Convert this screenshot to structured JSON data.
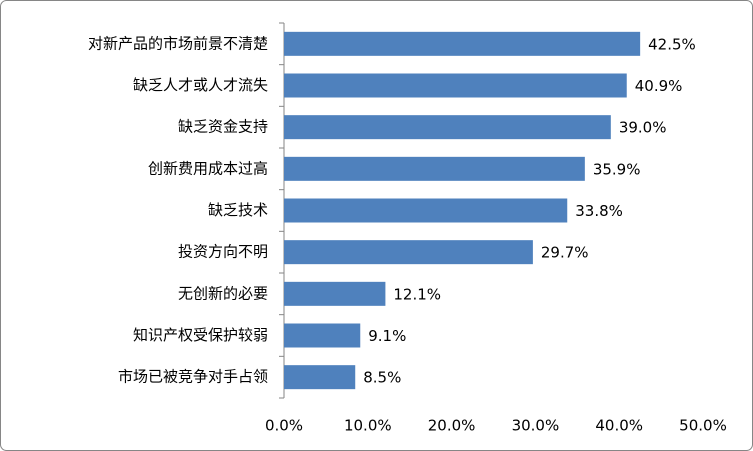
{
  "chart_data": {
    "type": "bar",
    "orientation": "horizontal",
    "categories": [
      "对新产品的市场前景不清楚",
      "缺乏人才或人才流失",
      "缺乏资金支持",
      "创新费用成本过高",
      "缺乏技术",
      "投资方向不明",
      "无创新的必要",
      "知识产权受保护较弱",
      "市场已被竞争对手占领"
    ],
    "values": [
      42.5,
      40.9,
      39.0,
      35.9,
      33.8,
      29.7,
      12.1,
      9.1,
      8.5
    ],
    "value_labels": [
      "42.5%",
      "40.9%",
      "39.0%",
      "35.9%",
      "33.8%",
      "29.7%",
      "12.1%",
      "9.1%",
      "8.5%"
    ],
    "color": "#4f81bd",
    "xlim": [
      0,
      50
    ],
    "xticks": [
      {
        "value": 0,
        "label": "0.0%"
      },
      {
        "value": 10,
        "label": "10.0%"
      },
      {
        "value": 20,
        "label": "20.0%"
      },
      {
        "value": 30,
        "label": "30.0%"
      },
      {
        "value": 40,
        "label": "40.0%"
      },
      {
        "value": 50,
        "label": "50.0%"
      }
    ],
    "grid": false
  }
}
